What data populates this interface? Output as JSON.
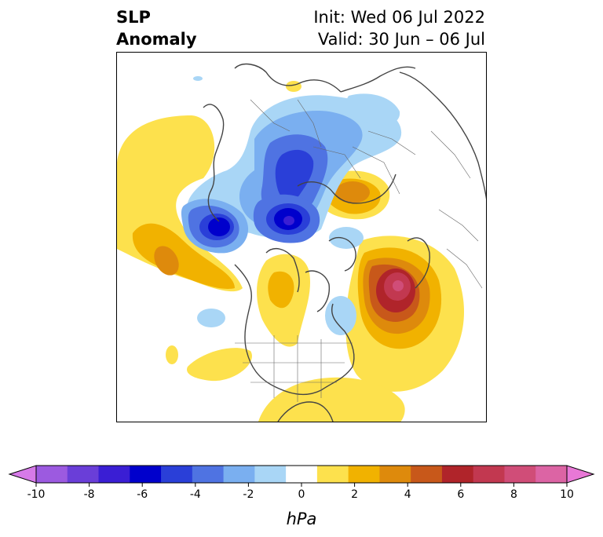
{
  "title": {
    "left_line1": "SLP",
    "left_line2": "Anomaly",
    "right_line1": "Init: Wed 06 Jul 2022",
    "right_line2": "Valid: 30 Jun – 06 Jul"
  },
  "colorbar": {
    "unit": "hPa",
    "tick_labels": [
      "-10",
      "-8",
      "-6",
      "-4",
      "-2",
      "0",
      "2",
      "4",
      "6",
      "8",
      "10"
    ],
    "colors": [
      "#d67ae8",
      "#9c5ae0",
      "#6a3ed8",
      "#3a1ed4",
      "#0000cc",
      "#2a3fd8",
      "#4f73e2",
      "#7aaff0",
      "#a9d6f6",
      "#ffffff",
      "#fde14d",
      "#f1b200",
      "#de8a0c",
      "#c8581a",
      "#b0242a",
      "#c23850",
      "#d04d78",
      "#dc64a4",
      "#e878d6"
    ]
  }
}
